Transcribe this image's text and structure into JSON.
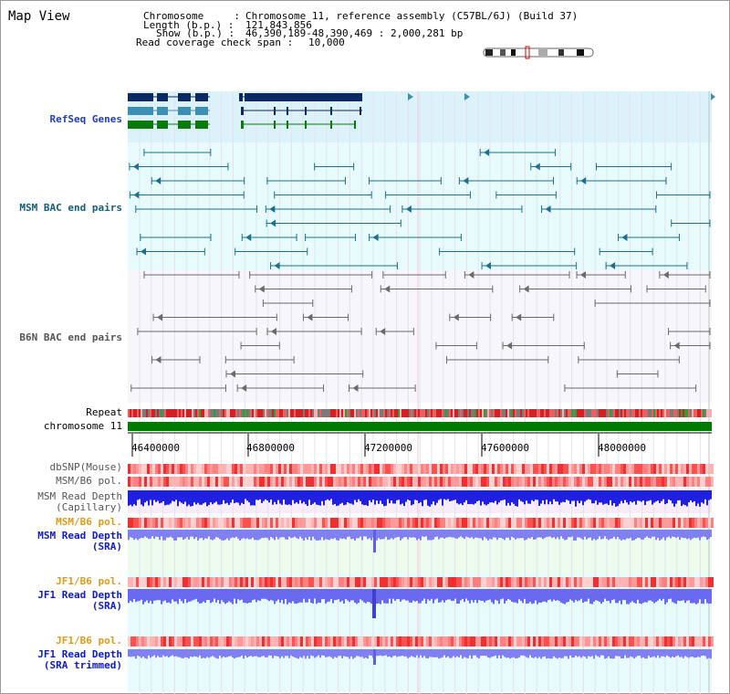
{
  "title": "Map View",
  "header": {
    "chromosome_key": "Chromosome     :",
    "chromosome_val": "Chromosome 11, reference assembly (C57BL/6J) (Build 37)",
    "length_key": "Length (b.p.) :",
    "length_val": "121,843,856",
    "show_key": "Show (b.p.) :",
    "show_val": "46,390,189-48,390,469 : 2,000,281 bp",
    "coverage_key": "Read coverage check span :",
    "coverage_val": "10,000"
  },
  "tracks": {
    "refseq": "RefSeq Genes",
    "msm_bac": "MSM BAC end pairs",
    "b6n_bac": "B6N BAC end pairs",
    "repeat": "Repeat",
    "chromosome": "chromosome 11",
    "dbsnp": "dbSNP(Mouse)",
    "msm_b6_pol": "MSM/B6 pol.",
    "msm_depth_cap_1": "MSM Read Depth",
    "msm_depth_cap_2": "(Capillary)",
    "msm_b6_pol_2": "MSM/B6 pol.",
    "msm_depth_sra_1": "MSM Read Depth",
    "msm_depth_sra_2": "(SRA)",
    "jf1_b6_pol": "JF1/B6 pol.",
    "jf1_depth_sra_1": "JF1 Read Depth",
    "jf1_depth_sra_2": "(SRA)",
    "jf1_b6_pol_2": "JF1/B6 pol.",
    "jf1_depth_trim_1": "JF1 Read Depth",
    "jf1_depth_trim_2": "(SRA trimmed)"
  },
  "axis_ticks": [
    "46400000",
    "46800000",
    "47200000",
    "47600000",
    "48000000"
  ],
  "colors": {
    "refseq_bg": "#dcf2fb",
    "bac_bg": "#e7fafc",
    "chromosome_bar": "#007a00",
    "gene_dark": "#0a2a66",
    "gene_mid": "#3c8fb4",
    "gene_green": "#0a7a0a"
  }
}
